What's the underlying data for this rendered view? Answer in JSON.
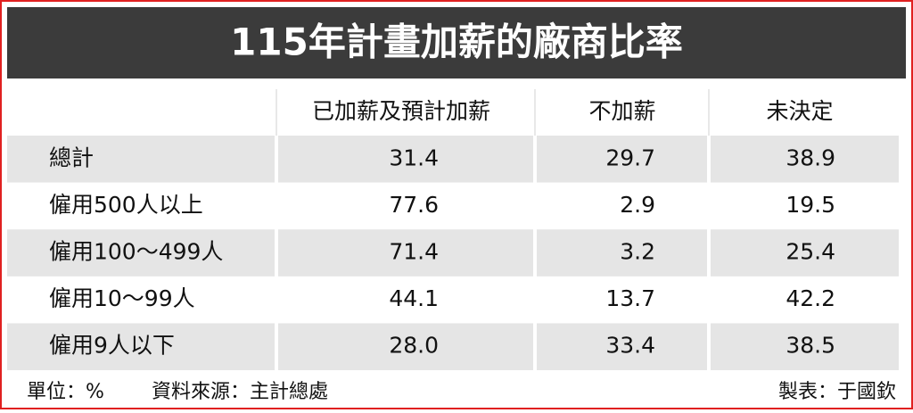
{
  "header": {
    "title": "115年計畫加薪的廠商比率"
  },
  "table": {
    "columns": [
      "已加薪及預計加薪",
      "不加薪",
      "未決定"
    ],
    "rows": [
      {
        "label": "總計",
        "cells": [
          "31.4",
          "29.7",
          "38.9"
        ]
      },
      {
        "label": "僱用500人以上",
        "cells": [
          "77.6",
          "2.9",
          "19.5"
        ]
      },
      {
        "label": "僱用100～499人",
        "cells": [
          "71.4",
          "3.2",
          "25.4"
        ]
      },
      {
        "label": "僱用10～99人",
        "cells": [
          "44.1",
          "13.7",
          "42.2"
        ]
      },
      {
        "label": "僱用9人以下",
        "cells": [
          "28.0",
          "33.4",
          "38.5"
        ]
      }
    ]
  },
  "footer": {
    "unit": "單位：%",
    "source": "資料來源：主計總處",
    "credit": "製表：于國欽"
  }
}
